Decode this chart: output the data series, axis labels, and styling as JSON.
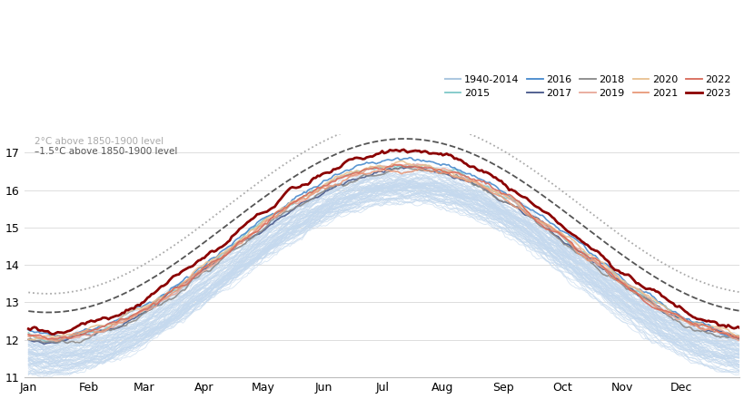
{
  "title": "",
  "ylabel": "",
  "xlabel": "",
  "ylim": [
    11.0,
    17.5
  ],
  "yticks": [
    11,
    12,
    13,
    14,
    15,
    16,
    17
  ],
  "month_labels": [
    "Jan",
    "Feb",
    "Mar",
    "Apr",
    "May",
    "Jun",
    "Jul",
    "Aug",
    "Sep",
    "Oct",
    "Nov",
    "Dec"
  ],
  "month_positions": [
    0,
    31,
    59,
    90,
    120,
    151,
    181,
    212,
    243,
    273,
    304,
    334
  ],
  "background_color": "#ffffff",
  "band_color": "#c5d9ee",
  "legend_entries": [
    "1940-2014",
    "2015",
    "2016",
    "2017",
    "2018",
    "2019",
    "2020",
    "2021",
    "2022",
    "2023"
  ],
  "legend_colors": [
    "#adc8e0",
    "#7ec8c8",
    "#4488cc",
    "#445588",
    "#888888",
    "#e8a898",
    "#e8c090",
    "#e89878",
    "#d86858",
    "#8b0000"
  ],
  "line_2c_color": "#aaaaaa",
  "line_15c_color": "#555555",
  "annotation_2c": "2°C above 1850-1900 level",
  "annotation_15c": "–1.5°C above 1850-1900 level"
}
